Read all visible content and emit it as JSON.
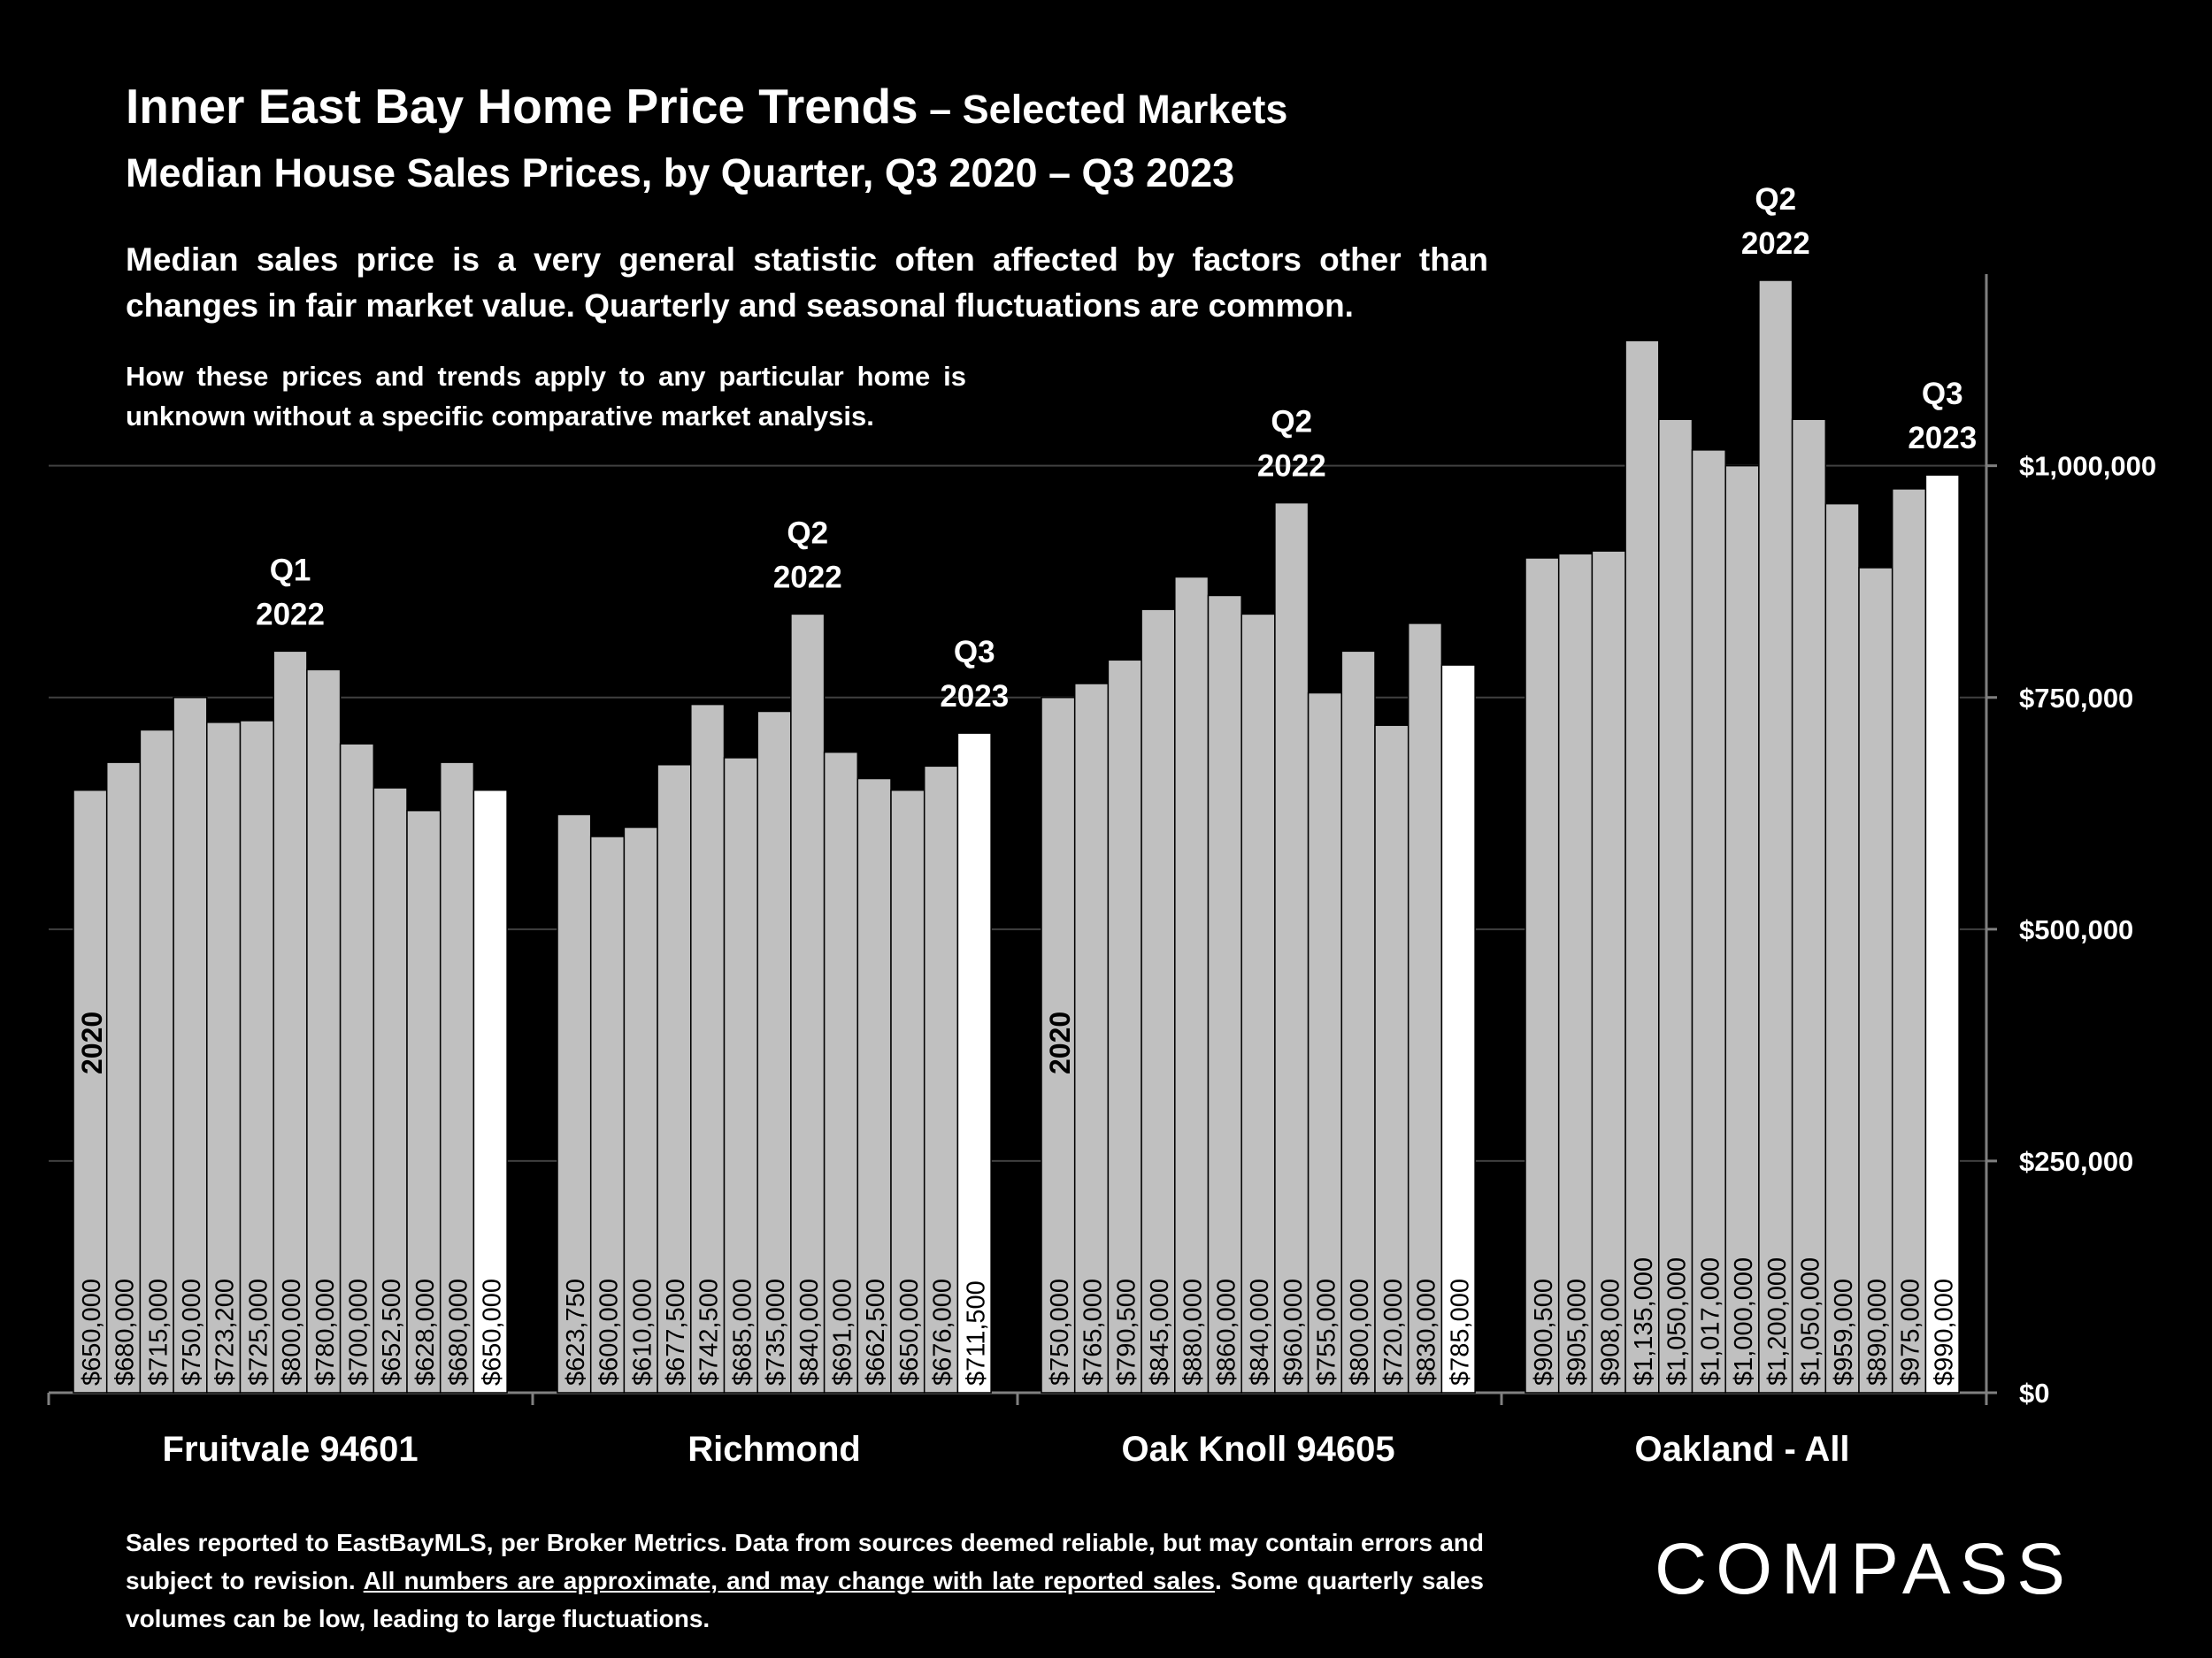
{
  "title": "Inner East Bay Home Price Trends",
  "title_suffix": " – Selected Markets",
  "subtitle": "Median House Sales Prices, by Quarter, Q3 2020 – Q3 2023",
  "note_main": "Median sales price is a very general statistic often affected by factors other than changes in fair market value. Quarterly and seasonal fluctuations are common.",
  "note_secondary": "How these prices and trends apply to any particular home is unknown without a specific comparative market analysis.",
  "footer": {
    "part1": "Sales reported to EastBayMLS, per Broker Metrics. Data from sources deemed reliable, but may contain errors and subject to revision. ",
    "underlined": "All numbers are approximate, and may change with late reported sales",
    "part2": ". Some quarterly sales volumes can be low, leading to large fluctuations."
  },
  "logo": "COMPASS",
  "colors": {
    "background": "#000000",
    "bar": "#c0c0c0",
    "bar_latest": "#ffffff",
    "grid": "#404040",
    "text": "#ffffff"
  },
  "chart_data": {
    "type": "bar",
    "ylim": [
      0,
      1200000
    ],
    "y_ticks": [
      0,
      250000,
      500000,
      750000,
      1000000
    ],
    "y_tick_labels": [
      "$0",
      "$250,000",
      "$500,000",
      "$750,000",
      "$1,000,000"
    ],
    "y_axis_position": "right",
    "grid": true,
    "groups": [
      {
        "name": "Fruitvale 94601",
        "values": [
          650000,
          680000,
          715000,
          750000,
          723200,
          725000,
          800000,
          780000,
          700000,
          652500,
          628000,
          680000,
          650000
        ],
        "labels": [
          "$650,000",
          "$680,000",
          "$715,000",
          "$750,000",
          "$723,200",
          "$725,000",
          "$800,000",
          "$780,000",
          "$700,000",
          "$652,500",
          "$628,000",
          "$680,000",
          "$650,000"
        ],
        "year_label": "2020",
        "peak": {
          "index": 6,
          "line1": "Q1",
          "line2": "2022"
        },
        "end_label": null
      },
      {
        "name": "Richmond",
        "values": [
          623750,
          600000,
          610000,
          677500,
          742500,
          685000,
          735000,
          840000,
          691000,
          662500,
          650000,
          676000,
          711500
        ],
        "labels": [
          "$623,750",
          "$600,000",
          "$610,000",
          "$677,500",
          "$742,500",
          "$685,000",
          "$735,000",
          "$840,000",
          "$691,000",
          "$662,500",
          "$650,000",
          "$676,000",
          "$711,500"
        ],
        "year_label": null,
        "peak": {
          "index": 7,
          "line1": "Q2",
          "line2": "2022"
        },
        "end_label": {
          "line1": "Q3",
          "line2": "2023"
        }
      },
      {
        "name": "Oak Knoll 94605",
        "values": [
          750000,
          765000,
          790500,
          845000,
          880000,
          860000,
          840000,
          960000,
          755000,
          800000,
          720000,
          830000,
          785000
        ],
        "labels": [
          "$750,000",
          "$765,000",
          "$790,500",
          "$845,000",
          "$880,000",
          "$860,000",
          "$840,000",
          "$960,000",
          "$755,000",
          "$800,000",
          "$720,000",
          "$830,000",
          "$785,000"
        ],
        "year_label": "2020",
        "peak": {
          "index": 7,
          "line1": "Q2",
          "line2": "2022"
        },
        "end_label": null
      },
      {
        "name": "Oakland - All",
        "values": [
          900500,
          905000,
          908000,
          1135000,
          1050000,
          1017000,
          1000000,
          1200000,
          1050000,
          959000,
          890000,
          975000,
          990000
        ],
        "labels": [
          "$900,500",
          "$905,000",
          "$908,000",
          "$1,135,000",
          "$1,050,000",
          "$1,017,000",
          "$1,000,000",
          "$1,200,000",
          "$1,050,000",
          "$959,000",
          "$890,000",
          "$975,000",
          "$990,000"
        ],
        "year_label": null,
        "peak": {
          "index": 7,
          "line1": "Q2",
          "line2": "2022"
        },
        "end_label": {
          "line1": "Q3",
          "line2": "2023"
        }
      }
    ]
  }
}
